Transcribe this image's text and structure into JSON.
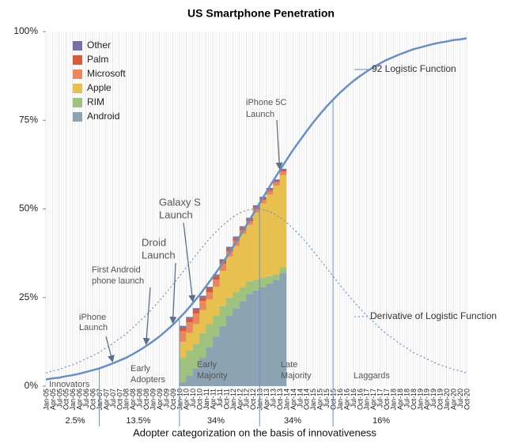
{
  "chart_data": {
    "type": "bar",
    "stacked": true,
    "title": "US Smartphone Penetration",
    "x_label": "Adopter categorization on the basis of innovativeness",
    "categories": [
      "Jan-05",
      "Apr-05",
      "Jul-05",
      "Oct-05",
      "Jan-06",
      "Apr-06",
      "Jul-06",
      "Oct-06",
      "Jan-07",
      "Apr-07",
      "Jul-07",
      "Oct-07",
      "Jan-08",
      "Apr-08",
      "Jul-08",
      "Oct-08",
      "Jan-09",
      "Apr-09",
      "Jul-09",
      "Oct-09",
      "Jan-10",
      "Apr-10",
      "Jul-10",
      "Oct-10",
      "Jan-11",
      "Apr-11",
      "Jul-11",
      "Oct-11",
      "Jan-12",
      "Apr-12",
      "Jul-12",
      "Oct-12",
      "Jan-13",
      "Apr-13",
      "Jul-13",
      "Oct-13",
      "Jan-14",
      "Apr-14",
      "Jul-14",
      "Oct-14",
      "Jan-15",
      "Apr-15",
      "Jul-15",
      "Oct-15",
      "Jan-16",
      "Apr-16",
      "Jul-16",
      "Oct-16",
      "Jan-17",
      "Apr-17",
      "Jul-17",
      "Oct-17",
      "Jan-18",
      "Apr-18",
      "Jul-18",
      "Oct-18",
      "Jan-19",
      "Apr-19",
      "Jul-19",
      "Oct-19",
      "Jan-20",
      "Apr-20",
      "Jul-20",
      "Oct-20"
    ],
    "series": [
      {
        "name": "Android",
        "color": "#8ba3b3",
        "values": [
          null,
          null,
          null,
          null,
          null,
          null,
          null,
          null,
          null,
          null,
          null,
          null,
          null,
          null,
          null,
          null,
          null,
          null,
          null,
          null,
          1,
          3,
          5,
          8,
          11,
          14,
          17,
          20,
          22,
          24,
          26,
          27,
          28,
          29,
          30,
          32,
          null,
          null,
          null,
          null,
          null,
          null,
          null,
          null,
          null,
          null,
          null,
          null,
          null,
          null,
          null,
          null,
          null,
          null,
          null,
          null,
          null,
          null,
          null,
          null,
          null,
          null,
          null,
          null
        ]
      },
      {
        "name": "RIM",
        "color": "#9fc27f",
        "values": [
          null,
          null,
          null,
          null,
          null,
          null,
          null,
          null,
          null,
          null,
          null,
          null,
          null,
          null,
          null,
          null,
          null,
          null,
          null,
          null,
          7,
          7,
          7,
          7,
          6.5,
          6,
          5.5,
          5,
          4.5,
          4,
          3.5,
          3,
          2.5,
          2,
          1.5,
          1.5,
          null,
          null,
          null,
          null,
          null,
          null,
          null,
          null,
          null,
          null,
          null,
          null,
          null,
          null,
          null,
          null,
          null,
          null,
          null,
          null,
          null,
          null,
          null,
          null,
          null,
          null,
          null,
          null
        ]
      },
      {
        "name": "Apple",
        "color": "#e8c050",
        "values": [
          null,
          null,
          null,
          null,
          null,
          null,
          null,
          null,
          null,
          null,
          null,
          null,
          null,
          null,
          null,
          null,
          null,
          null,
          null,
          null,
          4.5,
          5,
          5.5,
          6.5,
          7,
          8,
          10,
          11.5,
          13,
          15,
          16,
          19,
          21,
          23,
          25,
          26,
          null,
          null,
          null,
          null,
          null,
          null,
          null,
          null,
          null,
          null,
          null,
          null,
          null,
          null,
          null,
          null,
          null,
          null,
          null,
          null,
          null,
          null,
          null,
          null,
          null,
          null,
          null,
          null
        ]
      },
      {
        "name": "Microsoft",
        "color": "#e8885c",
        "values": [
          null,
          null,
          null,
          null,
          null,
          null,
          null,
          null,
          null,
          null,
          null,
          null,
          null,
          null,
          null,
          null,
          null,
          null,
          null,
          null,
          3,
          3,
          3,
          2.5,
          2,
          2,
          2,
          1.5,
          1.5,
          1,
          1,
          1,
          1,
          1,
          1,
          1,
          null,
          null,
          null,
          null,
          null,
          null,
          null,
          null,
          null,
          null,
          null,
          null,
          null,
          null,
          null,
          null,
          null,
          null,
          null,
          null,
          null,
          null,
          null,
          null,
          null,
          null,
          null,
          null
        ]
      },
      {
        "name": "Palm",
        "color": "#d85a3c",
        "values": [
          null,
          null,
          null,
          null,
          null,
          null,
          null,
          null,
          null,
          null,
          null,
          null,
          null,
          null,
          null,
          null,
          null,
          null,
          null,
          null,
          1,
          1,
          1,
          1,
          1,
          1,
          0.8,
          0.8,
          0.7,
          0.6,
          0.5,
          0.5,
          0.4,
          0.4,
          0.3,
          0.3,
          null,
          null,
          null,
          null,
          null,
          null,
          null,
          null,
          null,
          null,
          null,
          null,
          null,
          null,
          null,
          null,
          null,
          null,
          null,
          null,
          null,
          null,
          null,
          null,
          null,
          null,
          null,
          null
        ]
      },
      {
        "name": "Other",
        "color": "#7a6ea6",
        "values": [
          null,
          null,
          null,
          null,
          null,
          null,
          null,
          null,
          null,
          null,
          null,
          null,
          null,
          null,
          null,
          null,
          null,
          null,
          null,
          null,
          0.5,
          0.5,
          0.5,
          0.5,
          0.5,
          0.5,
          0.5,
          0.5,
          0.5,
          0.5,
          0.5,
          0.5,
          0.5,
          0.5,
          0.5,
          0.5,
          null,
          null,
          null,
          null,
          null,
          null,
          null,
          null,
          null,
          null,
          null,
          null,
          null,
          null,
          null,
          null,
          null,
          null,
          null,
          null,
          null,
          null,
          null,
          null,
          null,
          null,
          null,
          null
        ]
      }
    ],
    "lines": [
      {
        "name": "92 Logistic Function",
        "color": "#6a8fc2",
        "style": "solid",
        "values": [
          1.9,
          2.2,
          2.4,
          2.8,
          3.1,
          3.5,
          4.0,
          4.5,
          5.0,
          5.7,
          6.4,
          7.2,
          8.0,
          9.0,
          10.1,
          11.3,
          12.6,
          14.0,
          15.6,
          17.3,
          19.2,
          21.2,
          23.4,
          25.7,
          28.2,
          30.8,
          33.4,
          36.3,
          39.2,
          42.2,
          45.3,
          48.4,
          51.6,
          54.7,
          57.8,
          60.8,
          63.7,
          66.6,
          69.2,
          71.8,
          74.3,
          76.6,
          78.8,
          80.8,
          82.7,
          84.4,
          86.0,
          87.4,
          88.7,
          89.9,
          91.0,
          92.0,
          92.8,
          93.6,
          94.3,
          95.0,
          95.5,
          96.0,
          96.5,
          96.9,
          97.2,
          97.6,
          97.8,
          98.1
        ]
      },
      {
        "name": "Derivative of Logistic Function",
        "color": "#6a8fc2",
        "style": "dotted",
        "values": [
          3.7,
          4.3,
          4.7,
          5.4,
          6.0,
          6.8,
          7.7,
          8.6,
          9.5,
          10.8,
          12.0,
          13.4,
          14.7,
          16.4,
          18.2,
          20.0,
          22.0,
          24.1,
          26.3,
          28.6,
          31.0,
          33.4,
          35.8,
          38.2,
          40.5,
          42.6,
          44.5,
          46.2,
          47.7,
          48.8,
          49.6,
          49.9,
          49.9,
          49.6,
          48.8,
          47.7,
          46.2,
          44.5,
          42.6,
          40.5,
          38.2,
          35.8,
          33.4,
          31.0,
          28.6,
          26.3,
          24.1,
          22.0,
          20.0,
          18.2,
          16.4,
          14.7,
          13.4,
          12.0,
          10.8,
          9.5,
          8.6,
          7.7,
          6.8,
          6.0,
          5.4,
          4.7,
          4.3,
          3.7
        ]
      }
    ],
    "ylim": [
      0,
      100
    ],
    "yticks": [
      {
        "value": 0,
        "label": "0%"
      },
      {
        "value": 25,
        "label": "25%"
      },
      {
        "value": 50,
        "label": "50%"
      },
      {
        "value": 75,
        "label": "75%"
      },
      {
        "value": 100,
        "label": "100%"
      }
    ],
    "legend": "upper-left",
    "annotations": [
      {
        "lines": [
          "iPhone",
          "Launch"
        ],
        "x": "Jul-07"
      },
      {
        "lines": [
          "First Android",
          "phone launch"
        ],
        "x": "Oct-08"
      },
      {
        "lines": [
          "Droid",
          "Launch"
        ],
        "x": "Oct-09"
      },
      {
        "lines": [
          "Galaxy S",
          "Launch"
        ],
        "x": "Jul-10"
      },
      {
        "lines": [
          "iPhone 5C",
          "Launch"
        ],
        "x": "Oct-13"
      }
    ],
    "adopter_categories": [
      {
        "lines": [
          "Innovators"
        ],
        "share": "2.5%"
      },
      {
        "lines": [
          "Early",
          "Adopters"
        ],
        "share": "13.5%"
      },
      {
        "lines": [
          "Early",
          "Majority"
        ],
        "share": "34%"
      },
      {
        "lines": [
          "Late",
          "Majority"
        ],
        "share": "34%"
      },
      {
        "lines": [
          "Laggards"
        ],
        "share": "16%"
      }
    ],
    "adopter_boundaries": [
      "Jan-07",
      "Jan-10",
      "Jan-13",
      "Oct-15"
    ]
  }
}
